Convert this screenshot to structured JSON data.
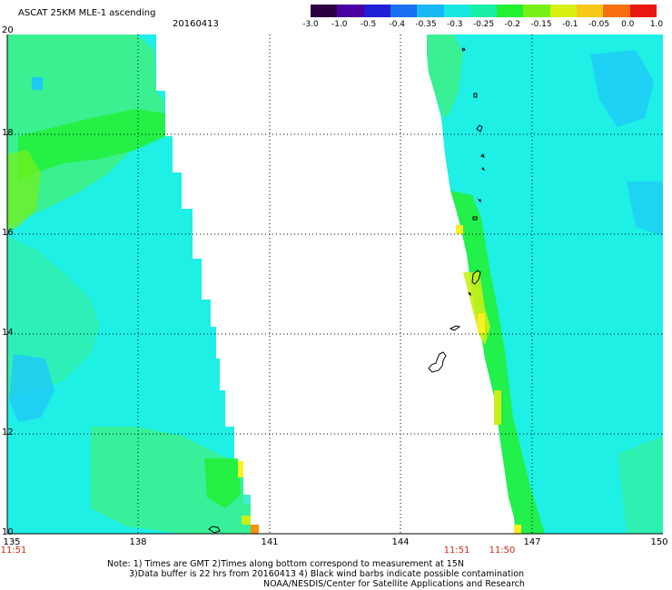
{
  "header": {
    "title": "ASCAT 25KM MLE-1 ascending",
    "date": "20160413"
  },
  "colorbar": {
    "labels": [
      "-3.0",
      "-1.0",
      "-0.5",
      "-0.4",
      "-0.35",
      "-0.3",
      "-0.25",
      "-0.2",
      "-0.15",
      "-0.1",
      "-0.05",
      "0.0",
      "1.0"
    ],
    "colors": [
      "#2a0040",
      "#4a00a0",
      "#1f1fd8",
      "#1a70f0",
      "#18b8f5",
      "#18e8e0",
      "#18f0a8",
      "#22f030",
      "#78f018",
      "#d8f010",
      "#f8c818",
      "#f86e10",
      "#e81810"
    ]
  },
  "axes": {
    "lat_labels": [
      "20",
      "18",
      "16",
      "14",
      "12",
      "10"
    ],
    "lon_labels": [
      "135",
      "138",
      "141",
      "144",
      "147",
      "150"
    ],
    "lat_range": [
      10,
      20
    ],
    "lon_range": [
      135,
      150
    ]
  },
  "times": {
    "left": "11:51",
    "mid": "11:51",
    "right": "11:50"
  },
  "notes": {
    "line1": "Note: 1) Times are GMT 2)Times along bottom correspond to measurement at 15N",
    "line2": "3)Data buffer is 22 hrs from 20160413 4) Black wind barbs indicate possible contamination",
    "line3": "NOAA/NESDIS/Center for Satellite Applications and Research"
  },
  "palette": {
    "cyan": "#1ef0e6",
    "cyan_light": "#2ef2ec",
    "blue_soft": "#1ec8f8",
    "green": "#22f03a",
    "green_lt": "#40f080",
    "yellow_green": "#c8f018",
    "yellow": "#f8f020",
    "orange": "#f8900c"
  }
}
